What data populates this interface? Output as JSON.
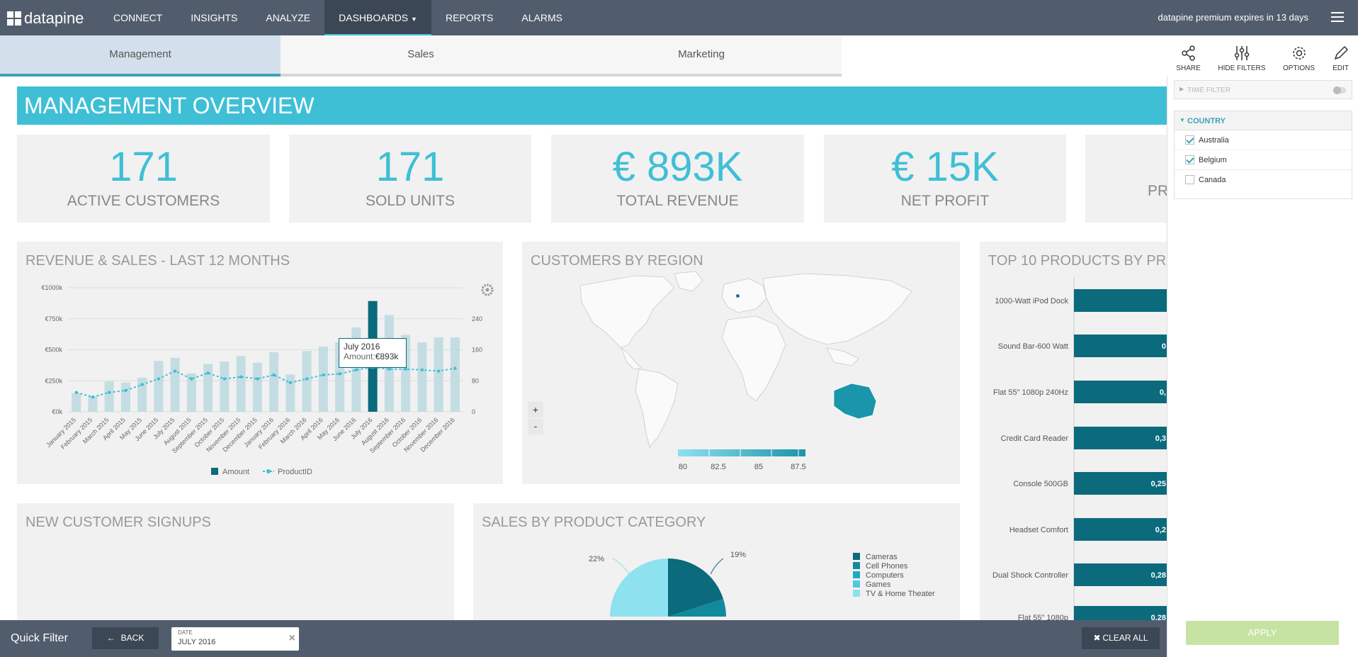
{
  "topbar": {
    "logo_text": "datapine",
    "nav": [
      "CONNECT",
      "INSIGHTS",
      "ANALYZE",
      "DASHBOARDS",
      "REPORTS",
      "ALARMS"
    ],
    "premium_text": "datapine premium expires in 13 days"
  },
  "tabs": [
    "Management",
    "Sales",
    "Marketing"
  ],
  "tools": [
    "SHARE",
    "HIDE FILTERS",
    "OPTIONS",
    "EDIT"
  ],
  "banner_title": "MANAGEMENT OVERVIEW",
  "kpis": [
    {
      "value": "171",
      "label": "ACTIVE CUSTOMERS"
    },
    {
      "value": "171",
      "label": "SOLD UNITS"
    },
    {
      "value": "€ 893K",
      "label": "TOTAL REVENUE"
    },
    {
      "value": "€ 15K",
      "label": "NET PROFIT"
    },
    {
      "value": "",
      "label": "PR"
    }
  ],
  "cards": {
    "revenue_title": "REVENUE & SALES -  LAST 12 MONTHS",
    "region_title": "CUSTOMERS BY REGION",
    "top10_title": "TOP 10 PRODUCTS BY PR",
    "signups_title": "NEW CUSTOMER SIGNUPS",
    "category_title": "SALES BY PRODUCT CATEGORY"
  },
  "tooltip": {
    "title": "July 2016",
    "label": "Amount:",
    "value": "€893k"
  },
  "map_legend": {
    "zoom_in": "+",
    "zoom_out": "-",
    "ticks": [
      "80",
      "82.5",
      "85",
      "87.5"
    ]
  },
  "filters": {
    "time_filter": "TIME FILTER",
    "country": "COUNTRY",
    "countries": [
      {
        "name": "Australia",
        "checked": true
      },
      {
        "name": "Belgium",
        "checked": true
      },
      {
        "name": "Canada",
        "checked": false
      }
    ],
    "apply": "APPLY"
  },
  "bottombar": {
    "quick_filter": "Quick Filter",
    "back": "BACK",
    "chip_label": "DATE",
    "chip_value": "JULY 2016",
    "chip_close": "×",
    "clear_all": "CLEAR ALL"
  },
  "colors": {
    "accent": "#3fbfd6",
    "dark_teal": "#0b6a7c",
    "bar_light": "#c4dde2",
    "topbar": "#515d6c"
  },
  "chart_data": [
    {
      "type": "bar",
      "title": "REVENUE & SALES -  LAST 12 MONTHS",
      "categories": [
        "January 2015",
        "February 2015",
        "March 2015",
        "April 2015",
        "May 2015",
        "June 2015",
        "July 2015",
        "August 2015",
        "September 2015",
        "October 2015",
        "November 2015",
        "December 2015",
        "January 2016",
        "February 2016",
        "March 2016",
        "April 2016",
        "May 2016",
        "June 2016",
        "July 2016",
        "August 2016",
        "September 2016",
        "October 2016",
        "November 2016",
        "December 2016"
      ],
      "series": [
        {
          "name": "Amount",
          "axis": "left",
          "values": [
            150,
            125,
            245,
            235,
            275,
            410,
            435,
            310,
            385,
            405,
            450,
            395,
            480,
            300,
            490,
            525,
            560,
            680,
            893,
            780,
            620,
            560,
            600,
            600
          ]
        },
        {
          "name": "ProductID",
          "axis": "right",
          "type": "line",
          "values": [
            50,
            38,
            50,
            55,
            70,
            85,
            105,
            85,
            100,
            85,
            90,
            85,
            95,
            75,
            85,
            95,
            98,
            108,
            115,
            110,
            110,
            108,
            105,
            112
          ]
        }
      ],
      "y_left_ticks": [
        "€0k",
        "€250k",
        "€500k",
        "€750k",
        "€1000k"
      ],
      "y_left_range": [
        0,
        1000
      ],
      "y_right_ticks": [
        "0",
        "80",
        "160",
        "240"
      ],
      "y_right_range": [
        0,
        320
      ],
      "legend": "bottom"
    },
    {
      "type": "bar",
      "title": "TOP 10 PRODUCTS BY PR",
      "orientation": "horizontal",
      "categories": [
        "1000-Watt iPod Dock",
        "Sound Bar-600 Watt",
        "Flat 55\" 1080p 240Hz",
        "Credit Card Reader",
        "Console 500GB",
        "Headset Comfort",
        "Dual Shock Controller",
        "Flat 55\" 1080p"
      ],
      "value_labels": [
        "",
        "0",
        "0,",
        "0,3",
        "0,25",
        "0,2",
        "0,28",
        "0,28"
      ]
    },
    {
      "type": "pie",
      "title": "SALES BY PRODUCT CATEGORY",
      "legend_entries": [
        {
          "name": "Cameras",
          "color": "#0b6a7c"
        },
        {
          "name": "Cell Phones",
          "color": "#128a9e"
        },
        {
          "name": "Computers",
          "color": "#1fa9c4"
        },
        {
          "name": "Games",
          "color": "#4fc8dd"
        },
        {
          "name": "TV & Home Theater",
          "color": "#8ee1ef"
        }
      ],
      "visible_labels": [
        "22%",
        "19%"
      ]
    }
  ]
}
